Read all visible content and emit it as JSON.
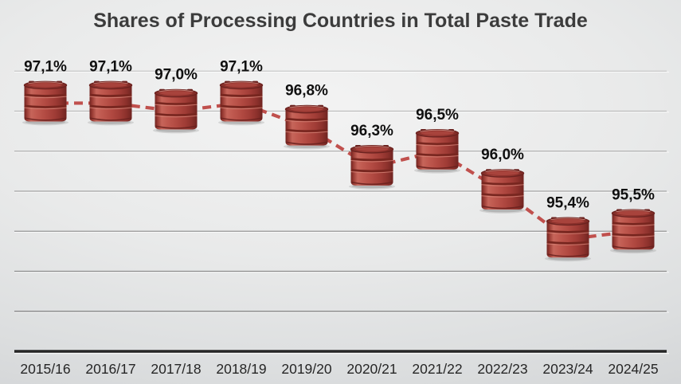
{
  "chart_data": {
    "type": "line",
    "title": "Shares of Processing Countries in Total Paste Trade",
    "categories": [
      "2015/16",
      "2016/17",
      "2017/18",
      "2018/19",
      "2019/20",
      "2020/21",
      "2021/22",
      "2022/23",
      "2023/24",
      "2024/25"
    ],
    "values": [
      97.1,
      97.1,
      97.0,
      97.1,
      96.8,
      96.3,
      96.5,
      96.0,
      95.4,
      95.5
    ],
    "value_labels": [
      "97,1%",
      "97,1%",
      "97,0%",
      "97,1%",
      "96,8%",
      "96,3%",
      "96,5%",
      "96,0%",
      "95,4%",
      "95,5%"
    ],
    "xlabel": "",
    "ylabel": "",
    "ylim": [
      94.0,
      97.8
    ],
    "gridline_step": 0.5,
    "grid": true,
    "legend_position": "none",
    "marker": "oil-barrel",
    "line_style": "dashed",
    "colors": {
      "trend_line": "#c0504d",
      "barrel_body": "#b24a42",
      "barrel_dark": "#6f2421",
      "title_text": "#3c3c3c",
      "value_label_text": "#101010",
      "axis_label_text": "#262626",
      "axis_line": "#262626"
    }
  }
}
